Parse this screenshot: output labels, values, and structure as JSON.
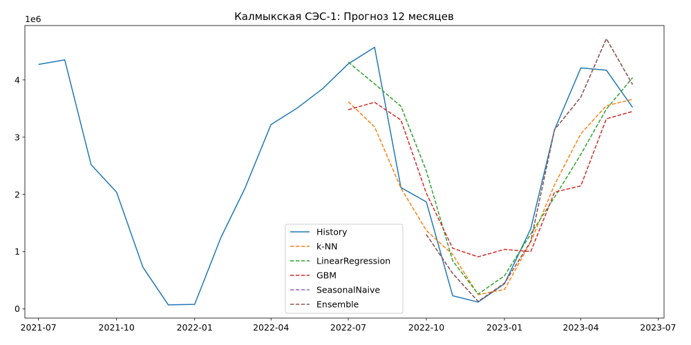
{
  "chart_data": {
    "type": "line",
    "title": "Калмыкская СЭС-1: Прогноз 12 месяцев",
    "xlabel": "",
    "ylabel": "",
    "y_multiplier_label": "1e6",
    "y_scale": 1000000,
    "grid": false,
    "legend_position": "bottom-center",
    "x_range": [
      "2021-06-15",
      "2023-07-08"
    ],
    "ylim": [
      -0.16,
      4.95
    ],
    "x_ticks": [
      {
        "date": "2021-07-01",
        "label": "2021-07"
      },
      {
        "date": "2021-10-01",
        "label": "2021-10"
      },
      {
        "date": "2022-01-01",
        "label": "2022-01"
      },
      {
        "date": "2022-04-01",
        "label": "2022-04"
      },
      {
        "date": "2022-07-01",
        "label": "2022-07"
      },
      {
        "date": "2022-10-01",
        "label": "2022-10"
      },
      {
        "date": "2023-01-01",
        "label": "2023-01"
      },
      {
        "date": "2023-04-01",
        "label": "2023-04"
      },
      {
        "date": "2023-07-01",
        "label": "2023-07"
      }
    ],
    "y_ticks": [
      {
        "value": 0,
        "label": "0"
      },
      {
        "value": 1,
        "label": "1"
      },
      {
        "value": 2,
        "label": "2"
      },
      {
        "value": 3,
        "label": "3"
      },
      {
        "value": 4,
        "label": "4"
      }
    ],
    "series": [
      {
        "name": "History",
        "color": "#1f77b4",
        "dash": "solid",
        "x": [
          "2021-07-01",
          "2021-08-01",
          "2021-09-01",
          "2021-10-01",
          "2021-11-01",
          "2021-12-01",
          "2022-01-01",
          "2022-02-01",
          "2022-03-01",
          "2022-04-01",
          "2022-05-01",
          "2022-06-01",
          "2022-07-01",
          "2022-08-01",
          "2022-09-01",
          "2022-10-01",
          "2022-11-01",
          "2022-12-01",
          "2023-01-01",
          "2023-02-01",
          "2023-03-01",
          "2023-04-01",
          "2023-05-01",
          "2023-06-01"
        ],
        "y": [
          4270000,
          4350000,
          2520000,
          2040000,
          730000,
          70000,
          80000,
          1250000,
          2100000,
          3220000,
          3500000,
          3850000,
          4280000,
          4570000,
          2120000,
          1870000,
          230000,
          120000,
          440000,
          1400000,
          3130000,
          4210000,
          4170000,
          3520000
        ]
      },
      {
        "name": "k-NN",
        "color": "#ff7f0e",
        "dash": "dashed",
        "x": [
          "2022-07-01",
          "2022-08-01",
          "2022-09-01",
          "2022-10-01",
          "2022-11-01",
          "2022-12-01",
          "2023-01-01",
          "2023-02-01",
          "2023-03-01",
          "2023-04-01",
          "2023-05-01",
          "2023-06-01"
        ],
        "y": [
          3620000,
          3180000,
          2110000,
          1370000,
          950000,
          250000,
          340000,
          1170000,
          2170000,
          3060000,
          3550000,
          3660000
        ]
      },
      {
        "name": "LinearRegression",
        "color": "#2ca02c",
        "dash": "dashed",
        "x": [
          "2022-07-01",
          "2022-08-01",
          "2022-09-01",
          "2022-10-01",
          "2022-11-01",
          "2022-12-01",
          "2023-01-01",
          "2023-02-01",
          "2023-03-01",
          "2023-04-01",
          "2023-05-01",
          "2023-06-01"
        ],
        "y": [
          4310000,
          3930000,
          3540000,
          2410000,
          840000,
          260000,
          580000,
          1310000,
          1950000,
          2700000,
          3490000,
          4040000
        ]
      },
      {
        "name": "GBM",
        "color": "#d62728",
        "dash": "dashed",
        "x": [
          "2022-07-01",
          "2022-08-01",
          "2022-09-01",
          "2022-10-01",
          "2022-11-01",
          "2022-12-01",
          "2023-01-01",
          "2023-02-01",
          "2023-03-01",
          "2023-04-01",
          "2023-05-01",
          "2023-06-01"
        ],
        "y": [
          3480000,
          3610000,
          3300000,
          2020000,
          1060000,
          910000,
          1040000,
          1000000,
          2040000,
          2150000,
          3320000,
          3450000
        ]
      },
      {
        "name": "SeasonalNaive",
        "color": "#9467bd",
        "dash": "dashed",
        "x": [
          "2022-10-01",
          "2022-11-01",
          "2022-12-01",
          "2023-01-01",
          "2023-02-01",
          "2023-03-01",
          "2023-04-01",
          "2023-05-01",
          "2023-06-01"
        ],
        "y": [
          1300000,
          620000,
          130000,
          450000,
          1180000,
          3130000,
          3700000,
          4720000,
          3920000
        ]
      },
      {
        "name": "Ensemble",
        "color": "#8c564b",
        "dash": "dashed",
        "x": [
          "2022-10-01",
          "2022-11-01",
          "2022-12-01",
          "2023-01-01",
          "2023-02-01",
          "2023-03-01",
          "2023-04-01",
          "2023-05-01",
          "2023-06-01"
        ],
        "y": [
          1300000,
          620000,
          130000,
          450000,
          1180000,
          3130000,
          3700000,
          4720000,
          3920000
        ]
      }
    ]
  }
}
